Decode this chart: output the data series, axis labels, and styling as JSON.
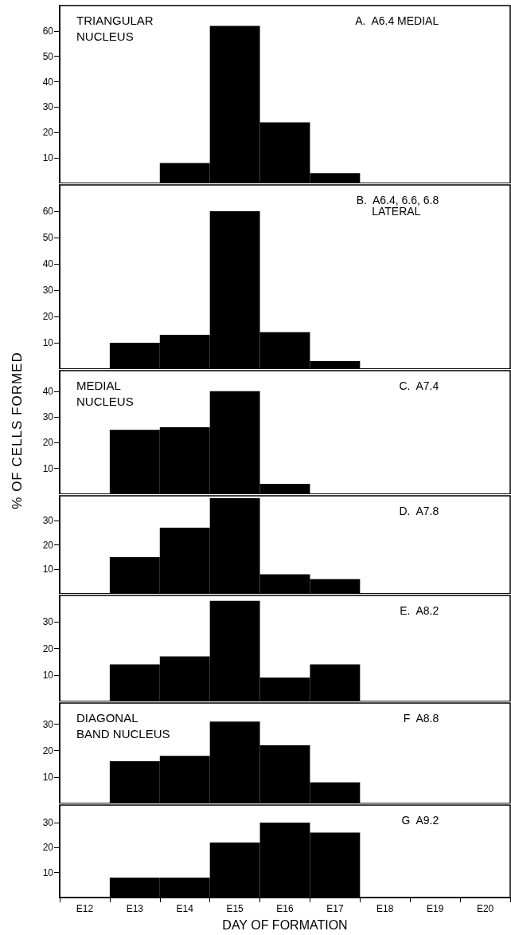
{
  "chart_data": [
    {
      "type": "bar",
      "title": "A.  A6.4 MEDIAL",
      "annotations": [
        "TRIANGULAR\nNUCLEUS"
      ],
      "categories": [
        null,
        null,
        null,
        null,
        null,
        null,
        null,
        null,
        null
      ],
      "values": [
        null,
        null,
        8,
        62,
        24,
        4,
        null,
        null,
        null
      ],
      "color": "#000000",
      "ylim": [
        0,
        70
      ],
      "yticks": [
        10,
        20,
        30,
        40,
        50,
        60
      ],
      "tick_labels": "y"
    },
    {
      "type": "bar",
      "title": "B.  A6.4, 6.6, 6.8\n     LATERAL",
      "categories": [
        null,
        null,
        null,
        null,
        null,
        null,
        null,
        null,
        null
      ],
      "values": [
        null,
        10,
        13,
        60,
        14,
        3,
        null,
        null,
        null
      ],
      "color": "#000000",
      "ylim": [
        0,
        70
      ],
      "yticks": [
        10,
        20,
        30,
        40,
        50,
        60
      ],
      "tick_labels": "y"
    },
    {
      "type": "bar",
      "title": "C.  A7.4",
      "annotations": [
        "MEDIAL\nNUCLEUS"
      ],
      "ylabel": "% OF CELLS FORMED",
      "categories": [
        null,
        null,
        null,
        null,
        null,
        null,
        null,
        null,
        null
      ],
      "values": [
        null,
        25,
        26,
        40,
        4,
        null,
        null,
        null,
        null
      ],
      "color": "#000000",
      "ylim": [
        0,
        48
      ],
      "yticks": [
        10,
        20,
        30,
        40
      ],
      "tick_labels": "y"
    },
    {
      "type": "bar",
      "title": "D.  A7.8",
      "categories": [
        null,
        null,
        null,
        null,
        null,
        null,
        null,
        null,
        null
      ],
      "values": [
        null,
        15,
        27,
        39,
        8,
        6,
        null,
        null,
        null
      ],
      "color": "#000000",
      "ylim": [
        0,
        40
      ],
      "yticks": [
        10,
        20,
        30
      ],
      "tick_labels": "y"
    },
    {
      "type": "bar",
      "title": "E.  A8.2",
      "categories": [
        null,
        null,
        null,
        null,
        null,
        null,
        null,
        null,
        null
      ],
      "values": [
        null,
        14,
        17,
        38,
        9,
        14,
        null,
        null,
        null
      ],
      "color": "#000000",
      "ylim": [
        0,
        40
      ],
      "yticks": [
        10,
        20,
        30
      ],
      "tick_labels": "y"
    },
    {
      "type": "bar",
      "title": "F  A8.8",
      "annotations": [
        "DIAGONAL\nBAND NUCLEUS"
      ],
      "categories": [
        null,
        null,
        null,
        null,
        null,
        null,
        null,
        null,
        null
      ],
      "values": [
        null,
        16,
        18,
        31,
        22,
        8,
        null,
        null,
        null
      ],
      "color": "#000000",
      "ylim": [
        0,
        38
      ],
      "yticks": [
        10,
        20,
        30
      ],
      "tick_labels": "y"
    },
    {
      "type": "bar",
      "title": "G  A9.2",
      "xlabel": "DAY OF FORMATION",
      "categories": [
        "E12",
        "E13",
        "E14",
        "E15",
        "E16",
        "E17",
        "E18",
        "E19",
        "E20"
      ],
      "values": [
        null,
        8,
        8,
        22,
        30,
        26,
        null,
        null,
        null
      ],
      "color": "#000000",
      "ylim": [
        0,
        37
      ],
      "yticks": [
        10,
        20,
        30
      ]
    }
  ]
}
